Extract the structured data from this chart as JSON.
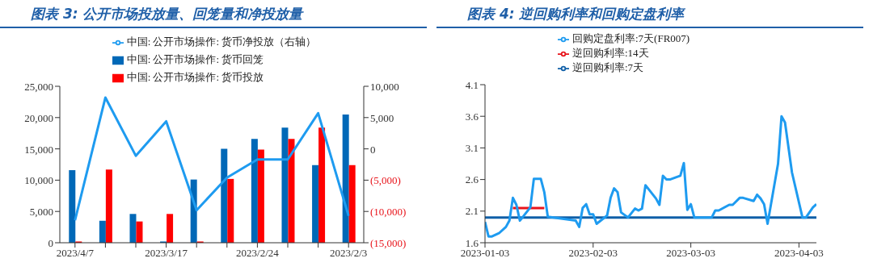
{
  "chart_data": [
    {
      "type": "bar",
      "title": "图表 3:  公开市场投放量、回笼量和净投放量",
      "categories": [
        "2023/4/7",
        null,
        null,
        "2023/3/17",
        null,
        null,
        "2023/2/24",
        null,
        null,
        "2023/2/3"
      ],
      "series": [
        {
          "name": "中国: 公开市场操作: 货币回笼",
          "color": "#0068b7",
          "values": [
            11600,
            3500,
            4600,
            200,
            10100,
            15000,
            16600,
            18400,
            12400,
            20500
          ]
        },
        {
          "name": "中国: 公开市场操作: 货币投放",
          "color": "#ff0000",
          "values": [
            200,
            11700,
            3400,
            4600,
            200,
            10200,
            14900,
            16600,
            18400,
            12400
          ]
        },
        {
          "name": "中国: 公开市场操作: 货币净投放（右轴）",
          "type": "line",
          "axis": "y2",
          "color": "#1e9bf0",
          "values": [
            -11400,
            8200,
            -1100,
            4400,
            -9800,
            -4600,
            -1700,
            -1700,
            5700,
            -10700
          ]
        }
      ],
      "ylim": [
        0,
        25000
      ],
      "yticks": [
        {
          "value": 0,
          "label": "0"
        },
        {
          "value": 5000,
          "label": "5,000"
        },
        {
          "value": 10000,
          "label": "10,000"
        },
        {
          "value": 15000,
          "label": "15,000"
        },
        {
          "value": 20000,
          "label": "20,000"
        },
        {
          "value": 25000,
          "label": "25,000"
        }
      ],
      "y2lim": [
        -15000,
        10000
      ],
      "y2ticks": [
        {
          "value": -15000,
          "label": "(15,000)"
        },
        {
          "value": -10000,
          "label": "(10,000)"
        },
        {
          "value": -5000,
          "label": "(5,000)"
        },
        {
          "value": 0,
          "label": "0"
        },
        {
          "value": 5000,
          "label": "5,000"
        },
        {
          "value": 10000,
          "label": "10,000"
        }
      ],
      "legend": "top"
    },
    {
      "type": "line",
      "title": "图表 4:  逆回购利率和回购定盘利率",
      "series": [
        {
          "name": "逆回购利率:7天",
          "color": "#0f5fa8",
          "x": [
            "2023-01-03",
            "2023-04-08"
          ],
          "values": [
            2.0,
            2.0
          ]
        },
        {
          "name": "逆回购利率:14天",
          "color": "#e8141b",
          "x": [
            "2023-01-11",
            "2023-01-20"
          ],
          "values": [
            2.15,
            2.15
          ]
        },
        {
          "name": "回购定盘利率:7天(FR007)",
          "color": "#1e9bf0",
          "x": [
            "2023-01-03",
            "2023-01-04",
            "2023-01-05",
            "2023-01-07",
            "2023-01-09",
            "2023-01-10",
            "2023-01-11",
            "2023-01-12",
            "2023-01-13",
            "2023-01-16",
            "2023-01-17",
            "2023-01-19",
            "2023-01-20",
            "2023-01-21",
            "2023-01-29",
            "2023-01-30",
            "2023-01-31",
            "2023-02-01",
            "2023-02-02",
            "2023-02-03",
            "2023-02-04",
            "2023-02-07",
            "2023-02-08",
            "2023-02-09",
            "2023-02-10",
            "2023-02-11",
            "2023-02-13",
            "2023-02-15",
            "2023-02-16",
            "2023-02-17",
            "2023-02-18",
            "2023-02-21",
            "2023-02-22",
            "2023-02-23",
            "2023-02-24",
            "2023-02-25",
            "2023-02-28",
            "2023-03-01",
            "2023-03-02",
            "2023-03-03",
            "2023-03-04",
            "2023-03-09",
            "2023-03-10",
            "2023-03-11",
            "2023-03-14",
            "2023-03-15",
            "2023-03-17",
            "2023-03-18",
            "2023-03-21",
            "2023-03-22",
            "2023-03-23",
            "2023-03-24",
            "2023-03-25",
            "2023-03-28",
            "2023-03-29",
            "2023-03-30",
            "2023-04-01",
            "2023-04-04",
            "2023-04-05",
            "2023-04-07",
            "2023-04-08"
          ],
          "values": [
            1.93,
            1.7,
            1.7,
            1.75,
            1.85,
            1.95,
            2.31,
            2.2,
            1.95,
            2.16,
            2.61,
            2.61,
            2.4,
            2.01,
            1.95,
            1.85,
            2.15,
            2.21,
            2.05,
            2.05,
            1.9,
            2.03,
            2.31,
            2.46,
            2.4,
            2.08,
            2.0,
            2.14,
            2.11,
            2.14,
            2.51,
            2.3,
            2.2,
            2.66,
            2.6,
            2.6,
            2.66,
            2.86,
            2.12,
            2.21,
            2.0,
            2.0,
            2.11,
            2.11,
            2.2,
            2.2,
            2.31,
            2.31,
            2.26,
            2.36,
            2.3,
            2.21,
            1.9,
            2.85,
            3.6,
            3.5,
            2.71,
            2.0,
            2.0,
            2.16,
            2.21
          ]
        }
      ],
      "xlim": [
        "2023-01-03",
        "2023-04-08"
      ],
      "xticks": [
        "2023-01-03",
        "2023-02-03",
        "2023-03-03",
        "2023-04-03"
      ],
      "ylim": [
        1.6,
        4.1
      ],
      "yticks": [
        1.6,
        2.1,
        2.6,
        3.1,
        3.6,
        4.1
      ],
      "legend": "top"
    }
  ]
}
